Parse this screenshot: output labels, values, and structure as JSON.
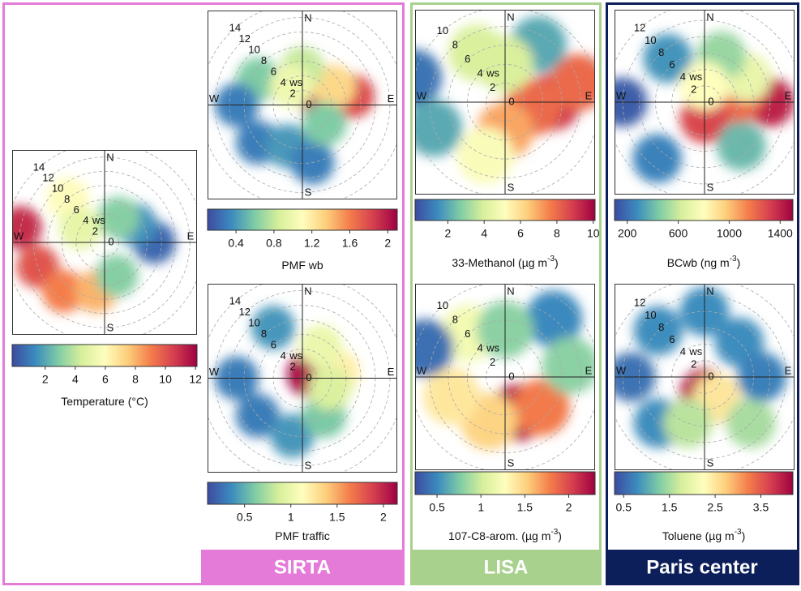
{
  "panels": [
    {
      "name": "SIRTA"
    },
    {
      "name": "LISA"
    },
    {
      "name": "Paris center"
    }
  ],
  "chart_data": [
    {
      "type": "polar",
      "label": "Temperature (°C)",
      "compass": [
        "N",
        "E",
        "S",
        "W"
      ],
      "ws_label": "ws",
      "rlim": [
        0,
        13
      ],
      "rings": [
        0,
        2,
        4,
        6,
        8,
        10,
        12,
        14
      ],
      "clim": [
        -0.2,
        12.1
      ],
      "cticks": [
        2,
        4,
        6,
        8,
        10,
        12
      ],
      "colormap": [
        "#3d4ba0",
        "#3b8bbf",
        "#7fcca5",
        "#d7ef9b",
        "#fefebd",
        "#fdce7c",
        "#f47d4b",
        "#d53e4f",
        "#9e0142"
      ],
      "points": [
        {
          "wd": 90,
          "ws": 7,
          "value": 0.5
        },
        {
          "wd": 60,
          "ws": 5,
          "value": 1.5
        },
        {
          "wd": 30,
          "ws": 4,
          "value": 3
        },
        {
          "wd": 320,
          "ws": 8,
          "value": 6
        },
        {
          "wd": 280,
          "ws": 12,
          "value": 11
        },
        {
          "wd": 250,
          "ws": 10,
          "value": 10
        },
        {
          "wd": 220,
          "ws": 9,
          "value": 9
        },
        {
          "wd": 190,
          "ws": 7,
          "value": 8
        },
        {
          "wd": 160,
          "ws": 5,
          "value": 3
        },
        {
          "wd": 300,
          "ws": 4,
          "value": 5
        }
      ]
    },
    {
      "type": "polar",
      "label": "PMF wb",
      "compass": [
        "N",
        "E",
        "S",
        "W"
      ],
      "ws_label": "ws",
      "rlim": [
        0,
        13
      ],
      "rings": [
        0,
        2,
        4,
        6,
        8,
        10,
        12,
        14
      ],
      "clim": [
        0.1,
        2.1
      ],
      "cticks": [
        0.4,
        0.8,
        1.2,
        1.6,
        2
      ],
      "colormap": [
        "#3d4ba0",
        "#3b8bbf",
        "#7fcca5",
        "#d7ef9b",
        "#fefebd",
        "#fdce7c",
        "#f47d4b",
        "#d53e4f",
        "#9e0142"
      ],
      "points": [
        {
          "wd": 90,
          "ws": 3,
          "value": 2.0
        },
        {
          "wd": 80,
          "ws": 7,
          "value": 1.8
        },
        {
          "wd": 60,
          "ws": 5,
          "value": 1.3
        },
        {
          "wd": 0,
          "ws": 5,
          "value": 0.8
        },
        {
          "wd": 300,
          "ws": 7,
          "value": 0.6
        },
        {
          "wd": 270,
          "ws": 9,
          "value": 0.3
        },
        {
          "wd": 230,
          "ws": 8,
          "value": 0.3
        },
        {
          "wd": 200,
          "ws": 6,
          "value": 0.4
        },
        {
          "wd": 170,
          "ws": 8,
          "value": 0.3
        },
        {
          "wd": 130,
          "ws": 4,
          "value": 0.6
        },
        {
          "wd": 330,
          "ws": 3,
          "value": 1.0
        }
      ]
    },
    {
      "type": "polar",
      "label": "PMF traffic",
      "compass": [
        "N",
        "E",
        "S",
        "W"
      ],
      "ws_label": "ws",
      "rlim": [
        0,
        13
      ],
      "rings": [
        0,
        2,
        4,
        6,
        8,
        10,
        12,
        14
      ],
      "clim": [
        0.1,
        2.15
      ],
      "cticks": [
        0.5,
        1,
        1.5,
        2
      ],
      "colormap": [
        "#3d4ba0",
        "#3b8bbf",
        "#7fcca5",
        "#d7ef9b",
        "#fefebd",
        "#fdce7c",
        "#f47d4b",
        "#d53e4f",
        "#9e0142"
      ],
      "points": [
        {
          "wd": 60,
          "ws": 1,
          "value": 2.1
        },
        {
          "wd": 80,
          "ws": 5,
          "value": 1.2
        },
        {
          "wd": 30,
          "ws": 5,
          "value": 1.0
        },
        {
          "wd": 330,
          "ws": 8,
          "value": 0.4
        },
        {
          "wd": 270,
          "ws": 9,
          "value": 0.3
        },
        {
          "wd": 230,
          "ws": 8,
          "value": 0.3
        },
        {
          "wd": 190,
          "ws": 8,
          "value": 0.4
        },
        {
          "wd": 150,
          "ws": 6,
          "value": 0.6
        },
        {
          "wd": 110,
          "ws": 4,
          "value": 0.9
        }
      ]
    },
    {
      "type": "polar",
      "label": "33-Methanol  (µg m",
      "label_sup": "-3",
      "label_end": ")",
      "compass": [
        "N",
        "E",
        "S",
        "W"
      ],
      "ws_label": "ws",
      "rlim": [
        0,
        9.5
      ],
      "rings": [
        0,
        2,
        4,
        6,
        8,
        10
      ],
      "clim": [
        0.2,
        10.1
      ],
      "cticks": [
        2,
        4,
        6,
        8,
        10
      ],
      "colormap": [
        "#3d4ba0",
        "#3b8bbf",
        "#7fcca5",
        "#d7ef9b",
        "#fefebd",
        "#fdce7c",
        "#f47d4b",
        "#d53e4f",
        "#9e0142"
      ],
      "points": [
        {
          "wd": 90,
          "ws": 5,
          "value": 9
        },
        {
          "wd": 75,
          "ws": 8,
          "value": 8
        },
        {
          "wd": 100,
          "ws": 3,
          "value": 8
        },
        {
          "wd": 180,
          "ws": 3,
          "value": 7
        },
        {
          "wd": 30,
          "ws": 7,
          "value": 2
        },
        {
          "wd": 330,
          "ws": 6,
          "value": 4
        },
        {
          "wd": 285,
          "ws": 10,
          "value": 1
        },
        {
          "wd": 250,
          "ws": 8,
          "value": 2
        },
        {
          "wd": 200,
          "ws": 6,
          "value": 5
        },
        {
          "wd": 0,
          "ws": 4,
          "value": 4
        }
      ]
    },
    {
      "type": "polar",
      "label": "107-C8-arom.  (µg m",
      "label_sup": "-3",
      "label_end": ")",
      "compass": [
        "N",
        "E",
        "S",
        "W"
      ],
      "ws_label": "ws",
      "rlim": [
        0,
        9.5
      ],
      "rings": [
        0,
        2,
        4,
        6,
        8,
        10
      ],
      "clim": [
        0.25,
        2.3
      ],
      "cticks": [
        0.5,
        1,
        1.5,
        2
      ],
      "colormap": [
        "#3d4ba0",
        "#3b8bbf",
        "#7fcca5",
        "#d7ef9b",
        "#fefebd",
        "#fdce7c",
        "#f47d4b",
        "#d53e4f",
        "#9e0142"
      ],
      "points": [
        {
          "wd": 160,
          "ws": 4,
          "value": 2.2
        },
        {
          "wd": 130,
          "ws": 5,
          "value": 1.8
        },
        {
          "wd": 200,
          "ws": 5,
          "value": 1.5
        },
        {
          "wd": 320,
          "ws": 6,
          "value": 1.2
        },
        {
          "wd": 40,
          "ws": 8,
          "value": 0.5
        },
        {
          "wd": 80,
          "ws": 7,
          "value": 0.8
        },
        {
          "wd": 250,
          "ws": 6,
          "value": 1.4
        },
        {
          "wd": 290,
          "ws": 9,
          "value": 0.4
        },
        {
          "wd": 0,
          "ws": 5,
          "value": 0.8
        }
      ]
    },
    {
      "type": "polar",
      "label": "BCwb (ng m",
      "label_sup": "-3",
      "label_end": ")",
      "compass": [
        "N",
        "E",
        "S",
        "W"
      ],
      "ws_label": "ws",
      "rlim": [
        0,
        11
      ],
      "rings": [
        0,
        2,
        4,
        6,
        8,
        10,
        12
      ],
      "clim": [
        100,
        1500
      ],
      "cticks": [
        200,
        600,
        1000,
        1400
      ],
      "colormap": [
        "#3d4ba0",
        "#3b8bbf",
        "#7fcca5",
        "#d7ef9b",
        "#fefebd",
        "#fdce7c",
        "#f47d4b",
        "#d53e4f",
        "#9e0142"
      ],
      "points": [
        {
          "wd": 90,
          "ws": 8,
          "value": 1400
        },
        {
          "wd": 85,
          "ws": 4,
          "value": 1200
        },
        {
          "wd": 180,
          "ws": 2,
          "value": 1300
        },
        {
          "wd": 60,
          "ws": 6,
          "value": 700
        },
        {
          "wd": 20,
          "ws": 6,
          "value": 500
        },
        {
          "wd": 320,
          "ws": 7,
          "value": 300
        },
        {
          "wd": 270,
          "ws": 10,
          "value": 150
        },
        {
          "wd": 220,
          "ws": 9,
          "value": 250
        },
        {
          "wd": 140,
          "ws": 7,
          "value": 400
        },
        {
          "wd": 0,
          "ws": 2,
          "value": 800
        }
      ]
    },
    {
      "type": "polar",
      "label": "Toluene  (µg m",
      "label_sup": "-3",
      "label_end": ")",
      "compass": [
        "N",
        "E",
        "S",
        "W"
      ],
      "ws_label": "ws",
      "rlim": [
        0,
        11
      ],
      "rings": [
        0,
        2,
        4,
        6,
        8,
        10,
        12
      ],
      "clim": [
        0.3,
        4.2
      ],
      "cticks": [
        0.5,
        1.5,
        2.5,
        3.5
      ],
      "colormap": [
        "#3d4ba0",
        "#3b8bbf",
        "#7fcca5",
        "#d7ef9b",
        "#fefebd",
        "#fdce7c",
        "#f47d4b",
        "#d53e4f",
        "#9e0142"
      ],
      "points": [
        {
          "wd": 180,
          "ws": 2,
          "value": 4.0
        },
        {
          "wd": 150,
          "ws": 3,
          "value": 2.5
        },
        {
          "wd": 45,
          "ws": 6,
          "value": 0.8
        },
        {
          "wd": 0,
          "ws": 8,
          "value": 0.8
        },
        {
          "wd": 315,
          "ws": 8,
          "value": 0.8
        },
        {
          "wd": 270,
          "ws": 9,
          "value": 0.6
        },
        {
          "wd": 225,
          "ws": 8,
          "value": 0.8
        },
        {
          "wd": 135,
          "ws": 8,
          "value": 1.5
        },
        {
          "wd": 90,
          "ws": 7,
          "value": 0.7
        },
        {
          "wd": 200,
          "ws": 6,
          "value": 1.6
        }
      ]
    }
  ]
}
